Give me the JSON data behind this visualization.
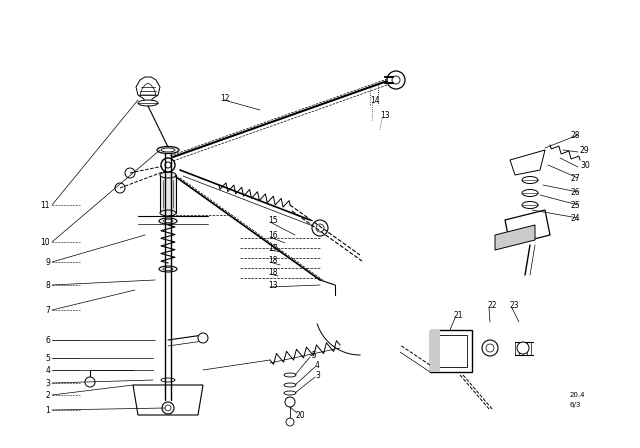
{
  "bg_color": "#ffffff",
  "line_color": "#000000",
  "fig_width": 6.4,
  "fig_height": 4.48,
  "dpi": 100,
  "footnote": "20.4\n6/3"
}
